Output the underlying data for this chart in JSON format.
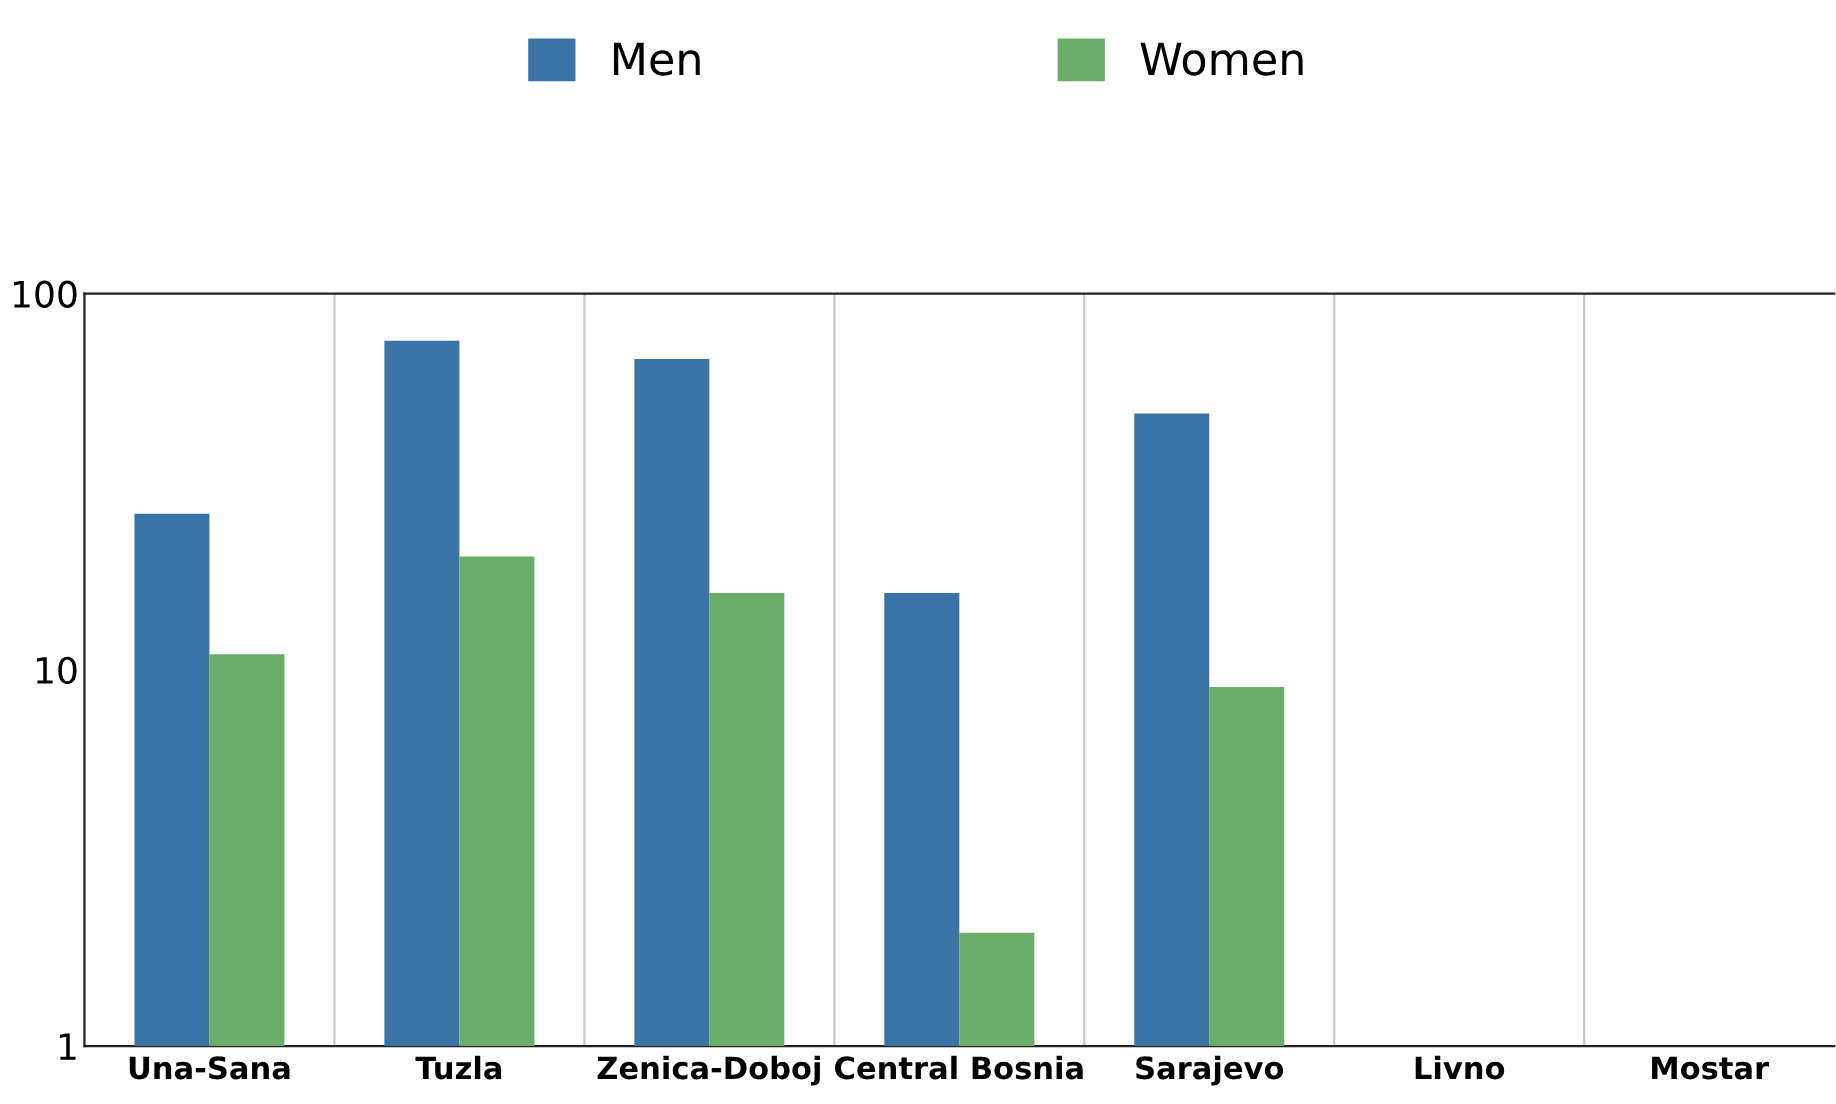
{
  "chart_data": {
    "type": "bar",
    "categories": [
      "Una-Sana",
      "Tuzla",
      "Zenica-Doboj",
      "Central Bosnia",
      "Sarajevo",
      "Livno",
      "Mostar"
    ],
    "series": [
      {
        "name": "Men",
        "color": "#3a73a6",
        "values": [
          26,
          75,
          67,
          16,
          48,
          null,
          null
        ]
      },
      {
        "name": "Women",
        "color": "#6aad68",
        "values": [
          11,
          20,
          16,
          2,
          9,
          null,
          null
        ]
      }
    ],
    "log": true,
    "ylim": [
      1,
      100
    ],
    "yticks": [
      1,
      10,
      100
    ],
    "grid": "x",
    "legend": "top"
  }
}
